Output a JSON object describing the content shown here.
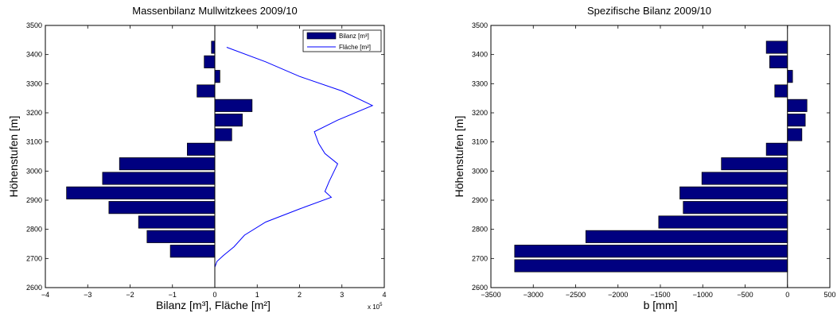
{
  "chart_data": [
    {
      "type": "bar",
      "orientation": "horizontal",
      "title": "Massenbilanz Mullwitzkees 2009/10",
      "xlabel": "Bilanz [m³], Fläche [m²]",
      "ylabel": "Höhenstufen [m]",
      "x_exponent_label": "x 10",
      "x_exponent_power": "5",
      "xlim": [
        -4,
        4
      ],
      "ylim": [
        2600,
        3500
      ],
      "xticks": [
        -4,
        -3,
        -2,
        -1,
        0,
        1,
        2,
        3,
        4
      ],
      "yticks": [
        2600,
        2700,
        2800,
        2900,
        3000,
        3100,
        3200,
        3300,
        3400,
        3500
      ],
      "legend_position": "top-right",
      "bar_color": "#000080",
      "line_color": "#0000ff",
      "series": [
        {
          "name": "Bilanz [m³]",
          "kind": "bar",
          "y": [
            2725,
            2775,
            2825,
            2875,
            2925,
            2975,
            3025,
            3075,
            3125,
            3175,
            3225,
            3275,
            3325,
            3375,
            3425
          ],
          "values": [
            -1.05,
            -1.6,
            -1.8,
            -2.5,
            -3.5,
            -2.65,
            -2.25,
            -0.65,
            0.4,
            0.65,
            0.88,
            -0.42,
            0.12,
            -0.25,
            -0.08
          ]
        },
        {
          "name": "Fläche [m²]",
          "kind": "line",
          "points": [
            [
              0.0,
              2670
            ],
            [
              0.05,
              2690
            ],
            [
              0.2,
              2710
            ],
            [
              0.45,
              2740
            ],
            [
              0.7,
              2780
            ],
            [
              1.2,
              2825
            ],
            [
              2.0,
              2870
            ],
            [
              2.75,
              2910
            ],
            [
              2.6,
              2930
            ],
            [
              2.7,
              2965
            ],
            [
              2.9,
              3025
            ],
            [
              2.6,
              3060
            ],
            [
              2.45,
              3095
            ],
            [
              2.35,
              3135
            ],
            [
              2.9,
              3175
            ],
            [
              3.72,
              3225
            ],
            [
              3.0,
              3275
            ],
            [
              2.0,
              3325
            ],
            [
              1.2,
              3375
            ],
            [
              0.28,
              3425
            ]
          ]
        }
      ]
    },
    {
      "type": "bar",
      "orientation": "horizontal",
      "title": "Spezifische Bilanz 2009/10",
      "xlabel": "b [mm]",
      "ylabel": "Höhenstufen [m]",
      "xlim": [
        -3500,
        500
      ],
      "ylim": [
        2600,
        3500
      ],
      "xticks": [
        -3500,
        -3000,
        -2500,
        -2000,
        -1500,
        -1000,
        -500,
        0,
        500
      ],
      "yticks": [
        2600,
        2700,
        2800,
        2900,
        3000,
        3100,
        3200,
        3300,
        3400,
        3500
      ],
      "bar_color": "#000080",
      "series": [
        {
          "kind": "bar",
          "y": [
            2675,
            2725,
            2775,
            2825,
            2875,
            2925,
            2975,
            3025,
            3075,
            3125,
            3175,
            3225,
            3275,
            3325,
            3375,
            3425
          ],
          "values": [
            -3220,
            -3220,
            -2380,
            -1520,
            -1230,
            -1270,
            -1010,
            -780,
            -250,
            170,
            210,
            230,
            -150,
            60,
            -210,
            -250
          ]
        }
      ]
    }
  ]
}
